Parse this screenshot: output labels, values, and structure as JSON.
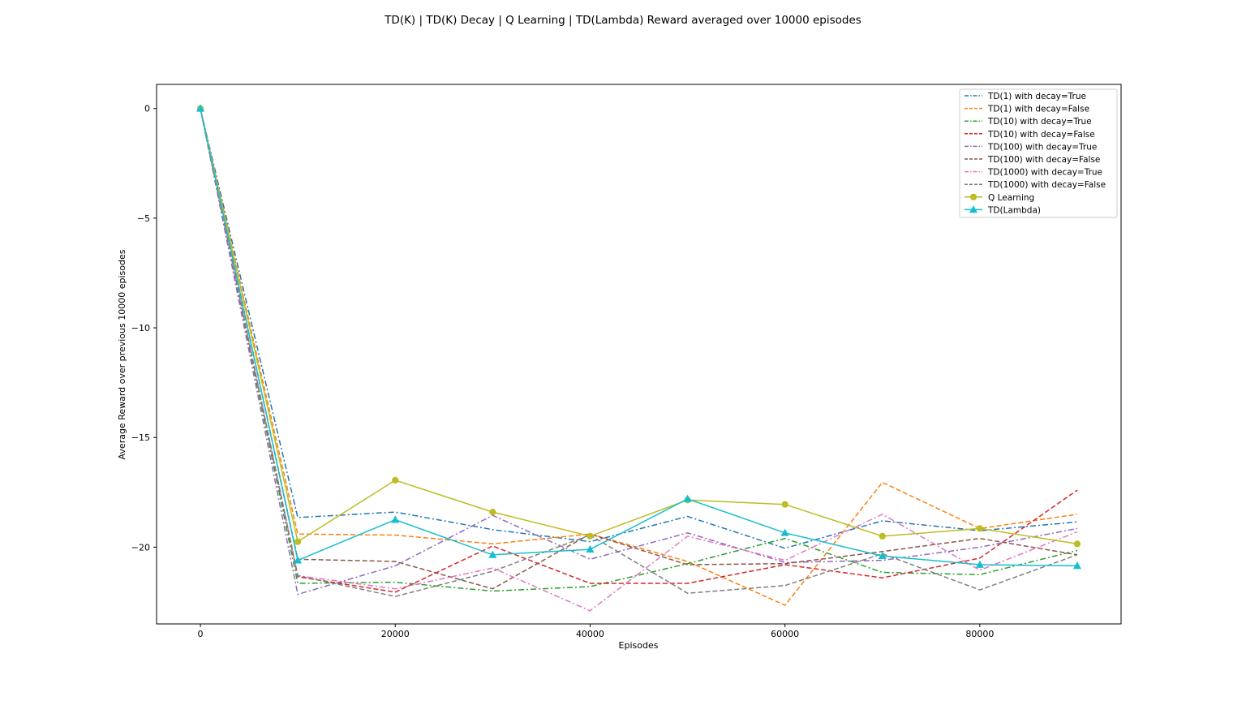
{
  "chart_data": {
    "type": "line",
    "title": "TD(K) | TD(K) Decay | Q Learning | TD(Lambda) Reward averaged over 10000 episodes",
    "xlabel": "Episodes",
    "ylabel": "Average Reward over previous 10000 episodes",
    "xlim": [
      -4500,
      94500
    ],
    "ylim": [
      -23.5,
      1.1
    ],
    "xticks": [
      0,
      20000,
      40000,
      60000,
      80000
    ],
    "xtick_labels": [
      "0",
      "20000",
      "40000",
      "60000",
      "80000"
    ],
    "yticks": [
      0,
      -5,
      -10,
      -15,
      -20
    ],
    "ytick_labels": [
      "0",
      "−5",
      "−10",
      "−15",
      "−20"
    ],
    "grid": false,
    "legend_position": "upper right",
    "x": [
      0,
      10000,
      20000,
      30000,
      40000,
      50000,
      60000,
      70000,
      80000,
      90000
    ],
    "series": [
      {
        "name": "TD(1) with decay=True",
        "color": "#1f77b4",
        "dash": "dashdot",
        "marker": "none",
        "values": [
          0,
          -18.65,
          -18.4,
          -19.2,
          -19.75,
          -18.6,
          -20.05,
          -18.8,
          -19.25,
          -18.85
        ]
      },
      {
        "name": "TD(1) with decay=False",
        "color": "#ff7f0e",
        "dash": "dashed",
        "marker": "none",
        "values": [
          0,
          -19.4,
          -19.45,
          -19.85,
          -19.4,
          -20.65,
          -22.65,
          -17.05,
          -19.15,
          -18.5
        ]
      },
      {
        "name": "TD(10) with decay=True",
        "color": "#2ca02c",
        "dash": "dashdot",
        "marker": "none",
        "values": [
          0,
          -21.65,
          -21.6,
          -22.0,
          -21.8,
          -20.75,
          -19.6,
          -21.15,
          -21.25,
          -20.15
        ]
      },
      {
        "name": "TD(10) with decay=False",
        "color": "#d62728",
        "dash": "dashed",
        "marker": "none",
        "values": [
          0,
          -21.35,
          -22.05,
          -19.95,
          -21.65,
          -21.65,
          -20.8,
          -21.4,
          -20.5,
          -17.4
        ]
      },
      {
        "name": "TD(100) with decay=True",
        "color": "#9467bd",
        "dash": "dashdot",
        "marker": "none",
        "values": [
          0,
          -22.15,
          -20.85,
          -18.55,
          -20.55,
          -19.35,
          -20.7,
          -20.6,
          -20.0,
          -19.15
        ]
      },
      {
        "name": "TD(100) with decay=False",
        "color": "#8c564b",
        "dash": "dashed",
        "marker": "none",
        "values": [
          0,
          -20.55,
          -20.65,
          -21.9,
          -19.4,
          -20.8,
          -20.75,
          -20.2,
          -19.6,
          -20.35
        ]
      },
      {
        "name": "TD(1000) with decay=True",
        "color": "#e377c2",
        "dash": "dashdot",
        "marker": "none",
        "values": [
          0,
          -21.3,
          -21.9,
          -20.95,
          -22.9,
          -19.5,
          -20.6,
          -18.5,
          -21.05,
          -19.3
        ]
      },
      {
        "name": "TD(1000) with decay=False",
        "color": "#7f7f7f",
        "dash": "dashed",
        "marker": "none",
        "values": [
          0,
          -21.3,
          -22.25,
          -21.1,
          -19.45,
          -22.1,
          -21.75,
          -20.3,
          -21.95,
          -20.35
        ]
      },
      {
        "name": "Q Learning",
        "color": "#bcbd22",
        "dash": "solid",
        "marker": "circle",
        "values": [
          0,
          -19.75,
          -16.95,
          -18.4,
          -19.5,
          -17.85,
          -18.05,
          -19.5,
          -19.15,
          -19.85
        ]
      },
      {
        "name": "TD(Lambda)",
        "color": "#17becf",
        "dash": "solid",
        "marker": "triangle",
        "values": [
          0,
          -20.6,
          -18.75,
          -20.35,
          -20.1,
          -17.8,
          -19.35,
          -20.4,
          -20.8,
          -20.85
        ]
      }
    ]
  }
}
